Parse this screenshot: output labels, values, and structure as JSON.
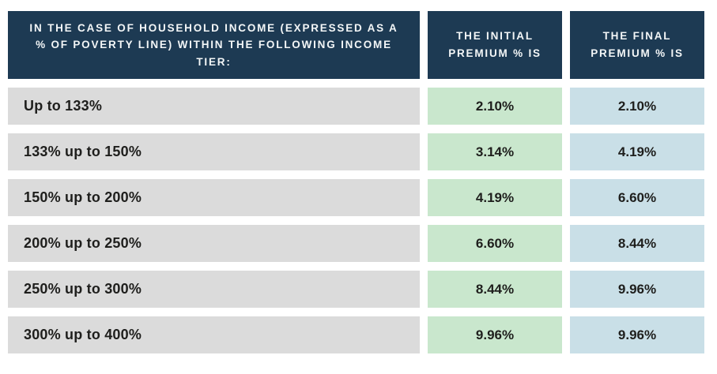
{
  "colors": {
    "header_bg": "#1d3a53",
    "tier_bg": "#dbdbdb",
    "initial_bg": "#c9e7cd",
    "final_bg": "#c9dfe7",
    "header_text": "#f3f6f7",
    "cell_text": "#1e1e1c",
    "page_bg": "#ffffff"
  },
  "table": {
    "headers": {
      "tier": "IN THE CASE OF HOUSEHOLD INCOME (EXPRESSED AS A % OF POVERTY LINE) WITHIN THE FOLLOWING INCOME TIER:",
      "initial": "THE INITIAL PREMIUM % IS",
      "final": "THE FINAL PREMIUM % IS"
    },
    "rows": [
      {
        "tier": "Up to 133%",
        "initial": "2.10%",
        "final": "2.10%"
      },
      {
        "tier": "133% up to 150%",
        "initial": "3.14%",
        "final": "4.19%"
      },
      {
        "tier": "150% up to 200%",
        "initial": "4.19%",
        "final": "6.60%"
      },
      {
        "tier": "200% up to 250%",
        "initial": "6.60%",
        "final": "8.44%"
      },
      {
        "tier": "250% up to 300%",
        "initial": "8.44%",
        "final": "9.96%"
      },
      {
        "tier": "300% up to 400%",
        "initial": "9.96%",
        "final": "9.96%"
      }
    ]
  },
  "chart_data": {
    "type": "table",
    "title": "",
    "columns": [
      "IN THE CASE OF HOUSEHOLD INCOME (EXPRESSED AS A % OF POVERTY LINE) WITHIN THE FOLLOWING INCOME TIER:",
      "THE INITIAL PREMIUM % IS",
      "THE FINAL PREMIUM % IS"
    ],
    "rows": [
      [
        "Up to 133%",
        "2.10%",
        "2.10%"
      ],
      [
        "133% up to 150%",
        "3.14%",
        "4.19%"
      ],
      [
        "150% up to 200%",
        "4.19%",
        "6.60%"
      ],
      [
        "200% up to 250%",
        "6.60%",
        "8.44%"
      ],
      [
        "250% up to 300%",
        "8.44%",
        "9.96%"
      ],
      [
        "300% up to 400%",
        "9.96%",
        "9.96%"
      ]
    ],
    "initial_premium_values": [
      2.1,
      3.14,
      4.19,
      6.6,
      8.44,
      9.96
    ],
    "final_premium_values": [
      2.1,
      4.19,
      6.6,
      8.44,
      9.96,
      9.96
    ]
  }
}
